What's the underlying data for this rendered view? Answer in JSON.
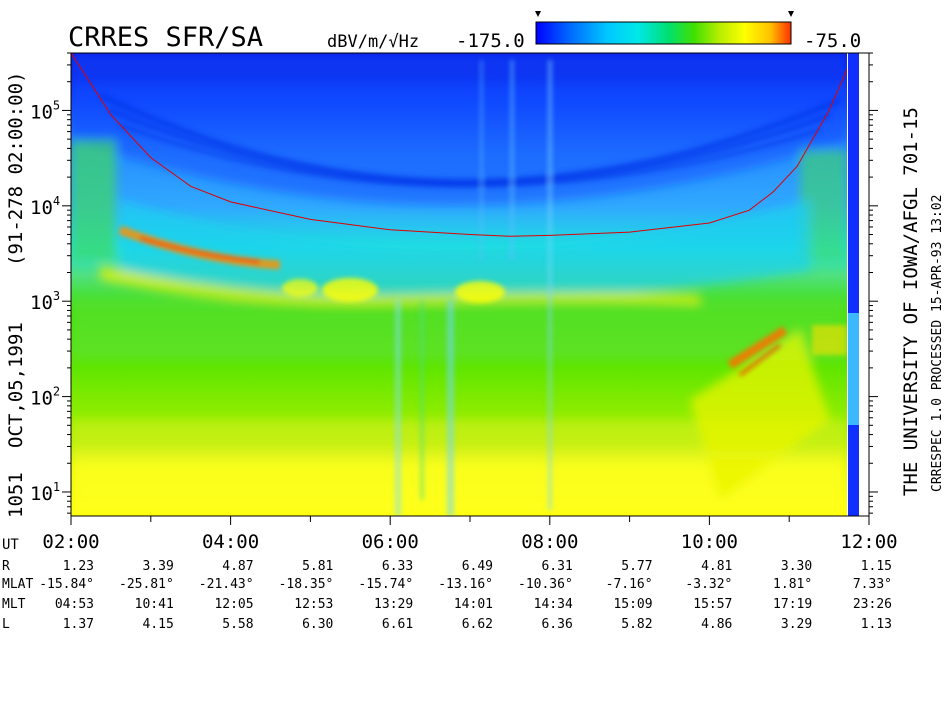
{
  "header": {
    "title": "CRRES SFR/SA",
    "units": "dBV/m/√Hz",
    "scale_min_label": "-175.0",
    "scale_max_label": "-75.0"
  },
  "left_label": {
    "orbit": "1051",
    "date": "OCT,05,1991",
    "doy": "(91-278 02:00:00)"
  },
  "right_label": {
    "institution": "THE UNIVERSITY OF IOWA/AFGL 701-15",
    "processing": "CRRESPEC 1.0   PROCESSED 15-APR-93  13:02"
  },
  "colorbar": {
    "colors": [
      "#0000ff",
      "#0060ff",
      "#00c8ff",
      "#00e8e8",
      "#00e070",
      "#40e000",
      "#b8ee00",
      "#ffff00",
      "#ffc000",
      "#ff3000"
    ]
  },
  "chart_data": {
    "type": "heatmap",
    "title": "CRRES SFR/SA",
    "xlabel": "UT",
    "ylabel": "",
    "x_ticks": [
      "02:00",
      "04:00",
      "06:00",
      "08:00",
      "10:00",
      "12:00"
    ],
    "x_range_hours": [
      2,
      12
    ],
    "y_scale": "log",
    "y_range": [
      5.6,
      400000
    ],
    "y_ticks": [
      {
        "value": 10,
        "base": "10",
        "exp": "1"
      },
      {
        "value": 100,
        "base": "10",
        "exp": "2"
      },
      {
        "value": 1000,
        "base": "10",
        "exp": "3"
      },
      {
        "value": 10000,
        "base": "10",
        "exp": "4"
      },
      {
        "value": 100000,
        "base": "10",
        "exp": "5"
      }
    ],
    "color_range": [
      -175.0,
      -75.0
    ],
    "colorbar_units": "dBV/m/√Hz",
    "electron_cyclotron_curve": [
      [
        2.0,
        400000
      ],
      [
        2.2,
        220000
      ],
      [
        2.5,
        90000
      ],
      [
        3.0,
        32000
      ],
      [
        3.5,
        16000
      ],
      [
        4.0,
        11000
      ],
      [
        5.0,
        7200
      ],
      [
        6.0,
        5600
      ],
      [
        7.0,
        5000
      ],
      [
        7.5,
        4800
      ],
      [
        8.0,
        4900
      ],
      [
        9.0,
        5300
      ],
      [
        10.0,
        6600
      ],
      [
        10.5,
        9000
      ],
      [
        10.8,
        14000
      ],
      [
        11.1,
        26000
      ],
      [
        11.5,
        100000
      ],
      [
        11.75,
        300000
      ]
    ],
    "ephemeris": {
      "labels": [
        "UT",
        "R",
        "MLAT",
        "MLT",
        "L"
      ],
      "R": [
        "1.23",
        "3.39",
        "4.87",
        "5.81",
        "6.33",
        "6.49",
        "6.31",
        "5.77",
        "4.81",
        "3.30",
        "1.15"
      ],
      "MLAT": [
        "-15.84°",
        "-25.81°",
        "-21.43°",
        "-18.35°",
        "-15.74°",
        "-13.16°",
        "-10.36°",
        "-7.16°",
        "-3.32°",
        "1.81°",
        "7.33°"
      ],
      "MLT": [
        "04:53",
        "10:41",
        "12:05",
        "12:53",
        "13:29",
        "14:01",
        "14:34",
        "15:09",
        "15:57",
        "17:19",
        "23:26"
      ],
      "L": [
        "1.37",
        "4.15",
        "5.58",
        "6.30",
        "6.61",
        "6.62",
        "6.36",
        "5.82",
        "4.86",
        "3.29",
        "1.13"
      ]
    }
  }
}
